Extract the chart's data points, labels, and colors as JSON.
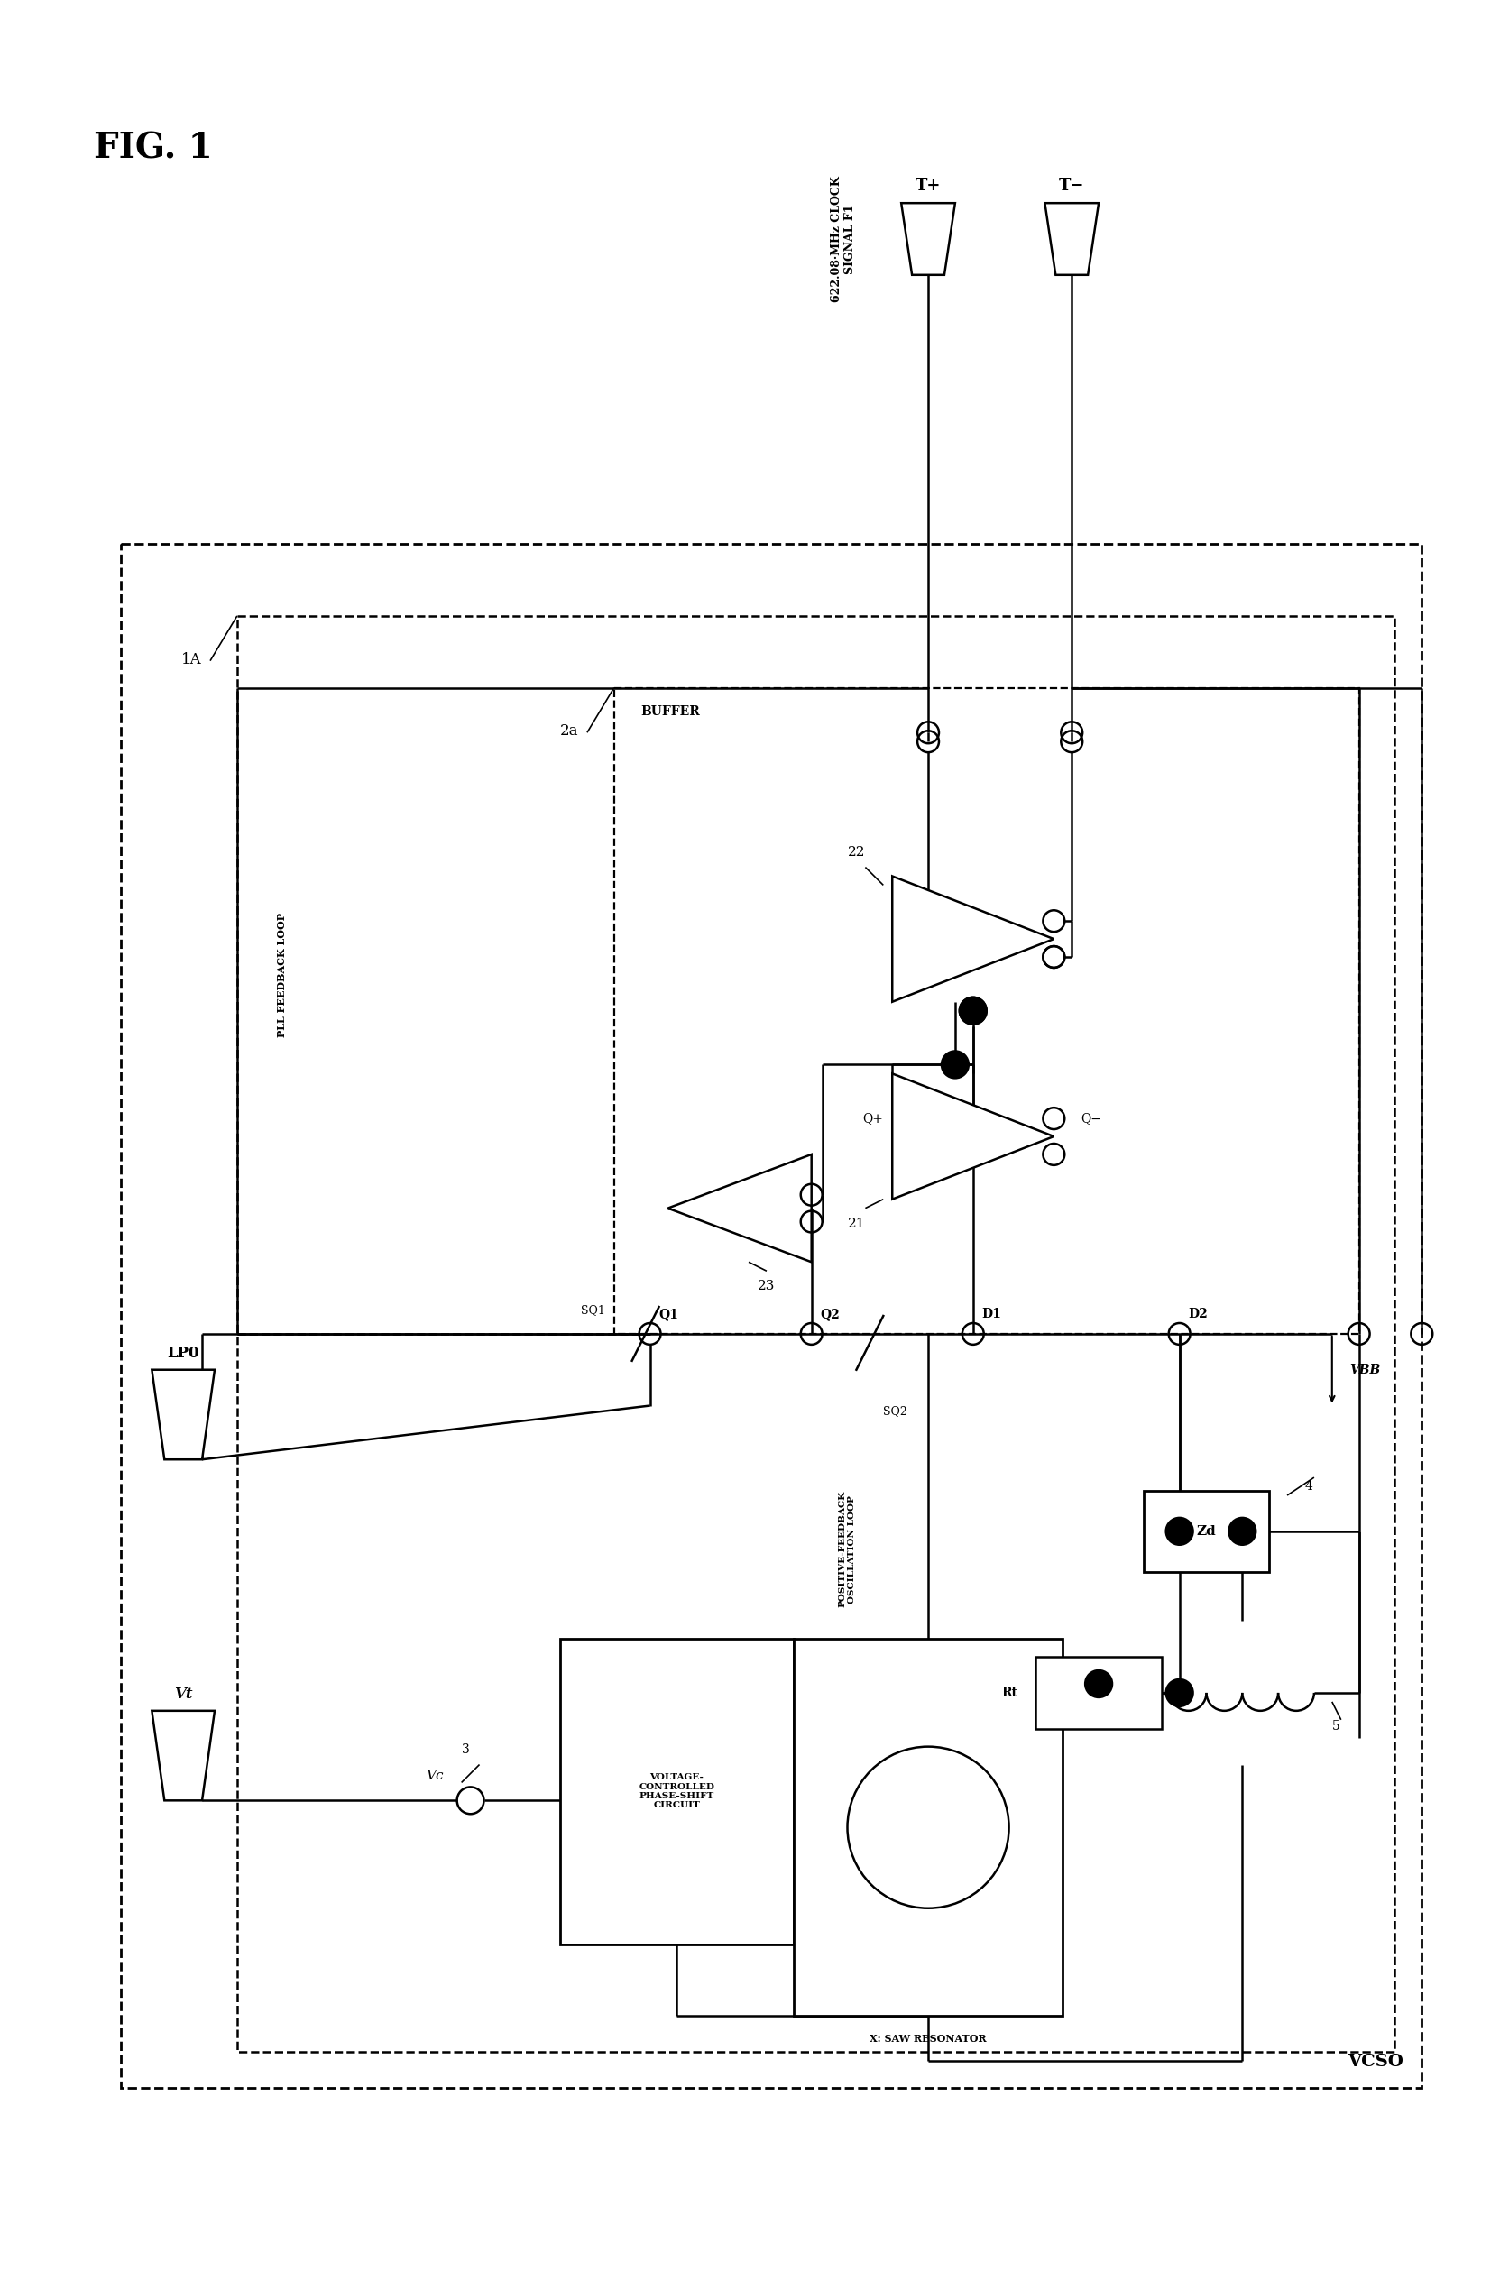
{
  "bg_color": "#ffffff",
  "fig_width": 16.74,
  "fig_height": 25.28,
  "labels": {
    "fig_title": "FIG. 1",
    "clock_label": "622.08·MHz CLOCK\nSIGNAL F1",
    "T_plus": "T+",
    "T_minus": "T−",
    "buffer": "BUFFER",
    "label_22": "22",
    "label_21": "21",
    "label_23": "23",
    "Q_plus": "Q+",
    "Q_minus": "Q−",
    "D1": "D1",
    "D2": "D2",
    "Q1": "Q1",
    "Q2": "Q2",
    "SQ1": "SQ1",
    "SQ2": "SQ2",
    "label_1A": "1A",
    "label_2a": "2a",
    "label_3": "3",
    "label_4": "4",
    "label_5": "5",
    "Vt": "Vt",
    "Vc": "Vc",
    "LPO": "LP0",
    "VBB": "VBB",
    "pll_feedback": "PLL FEEDBACK LOOP",
    "pos_feedback": "POSITIVE-FEEDBACK\nOSCILLATION LOOP",
    "vcso": "VCSO",
    "volt_ctrl": "VOLTAGE-\nCONTROLLED\nPHASE-SHIFT\nCIRCUIT",
    "saw_res": "X: SAW RESONATOR",
    "Zd": "Zd",
    "Rt": "Rt"
  }
}
